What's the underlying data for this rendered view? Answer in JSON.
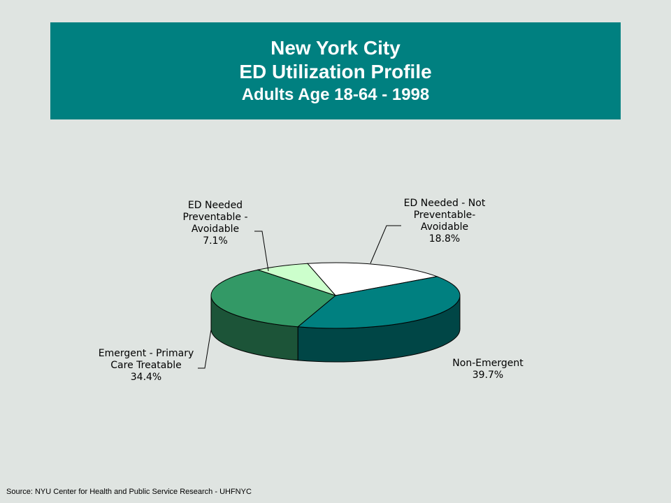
{
  "title": {
    "line1": "New York City",
    "line2": "ED Utilization Profile",
    "line3": "Adults Age 18-64 - 1998"
  },
  "source": "Source:  NYU Center for Health and Public Service Research - UHFNYC",
  "colors": {
    "banner": "#008080",
    "background": "#dfe4e1",
    "non_emergent": "#008080",
    "emergent_primary": "#339966",
    "ed_preventable": "#ccffcc",
    "ed_not_preventable": "#ffffff"
  },
  "chart_data": {
    "type": "pie",
    "three_d": true,
    "legend": "none",
    "slices": [
      {
        "label_lines": [
          "ED Needed - Not",
          "Preventable-",
          "Avoidable"
        ],
        "value_label": "18.8%",
        "value": 18.8,
        "color": "#ffffff"
      },
      {
        "label_lines": [
          "Non-Emergent"
        ],
        "value_label": "39.7%",
        "value": 39.7,
        "color": "#008080"
      },
      {
        "label_lines": [
          "Emergent - Primary",
          "Care Treatable"
        ],
        "value_label": "34.4%",
        "value": 34.4,
        "color": "#339966"
      },
      {
        "label_lines": [
          "ED Needed",
          "Preventable -",
          "Avoidable"
        ],
        "value_label": "7.1%",
        "value": 7.1,
        "color": "#ccffcc"
      }
    ]
  }
}
